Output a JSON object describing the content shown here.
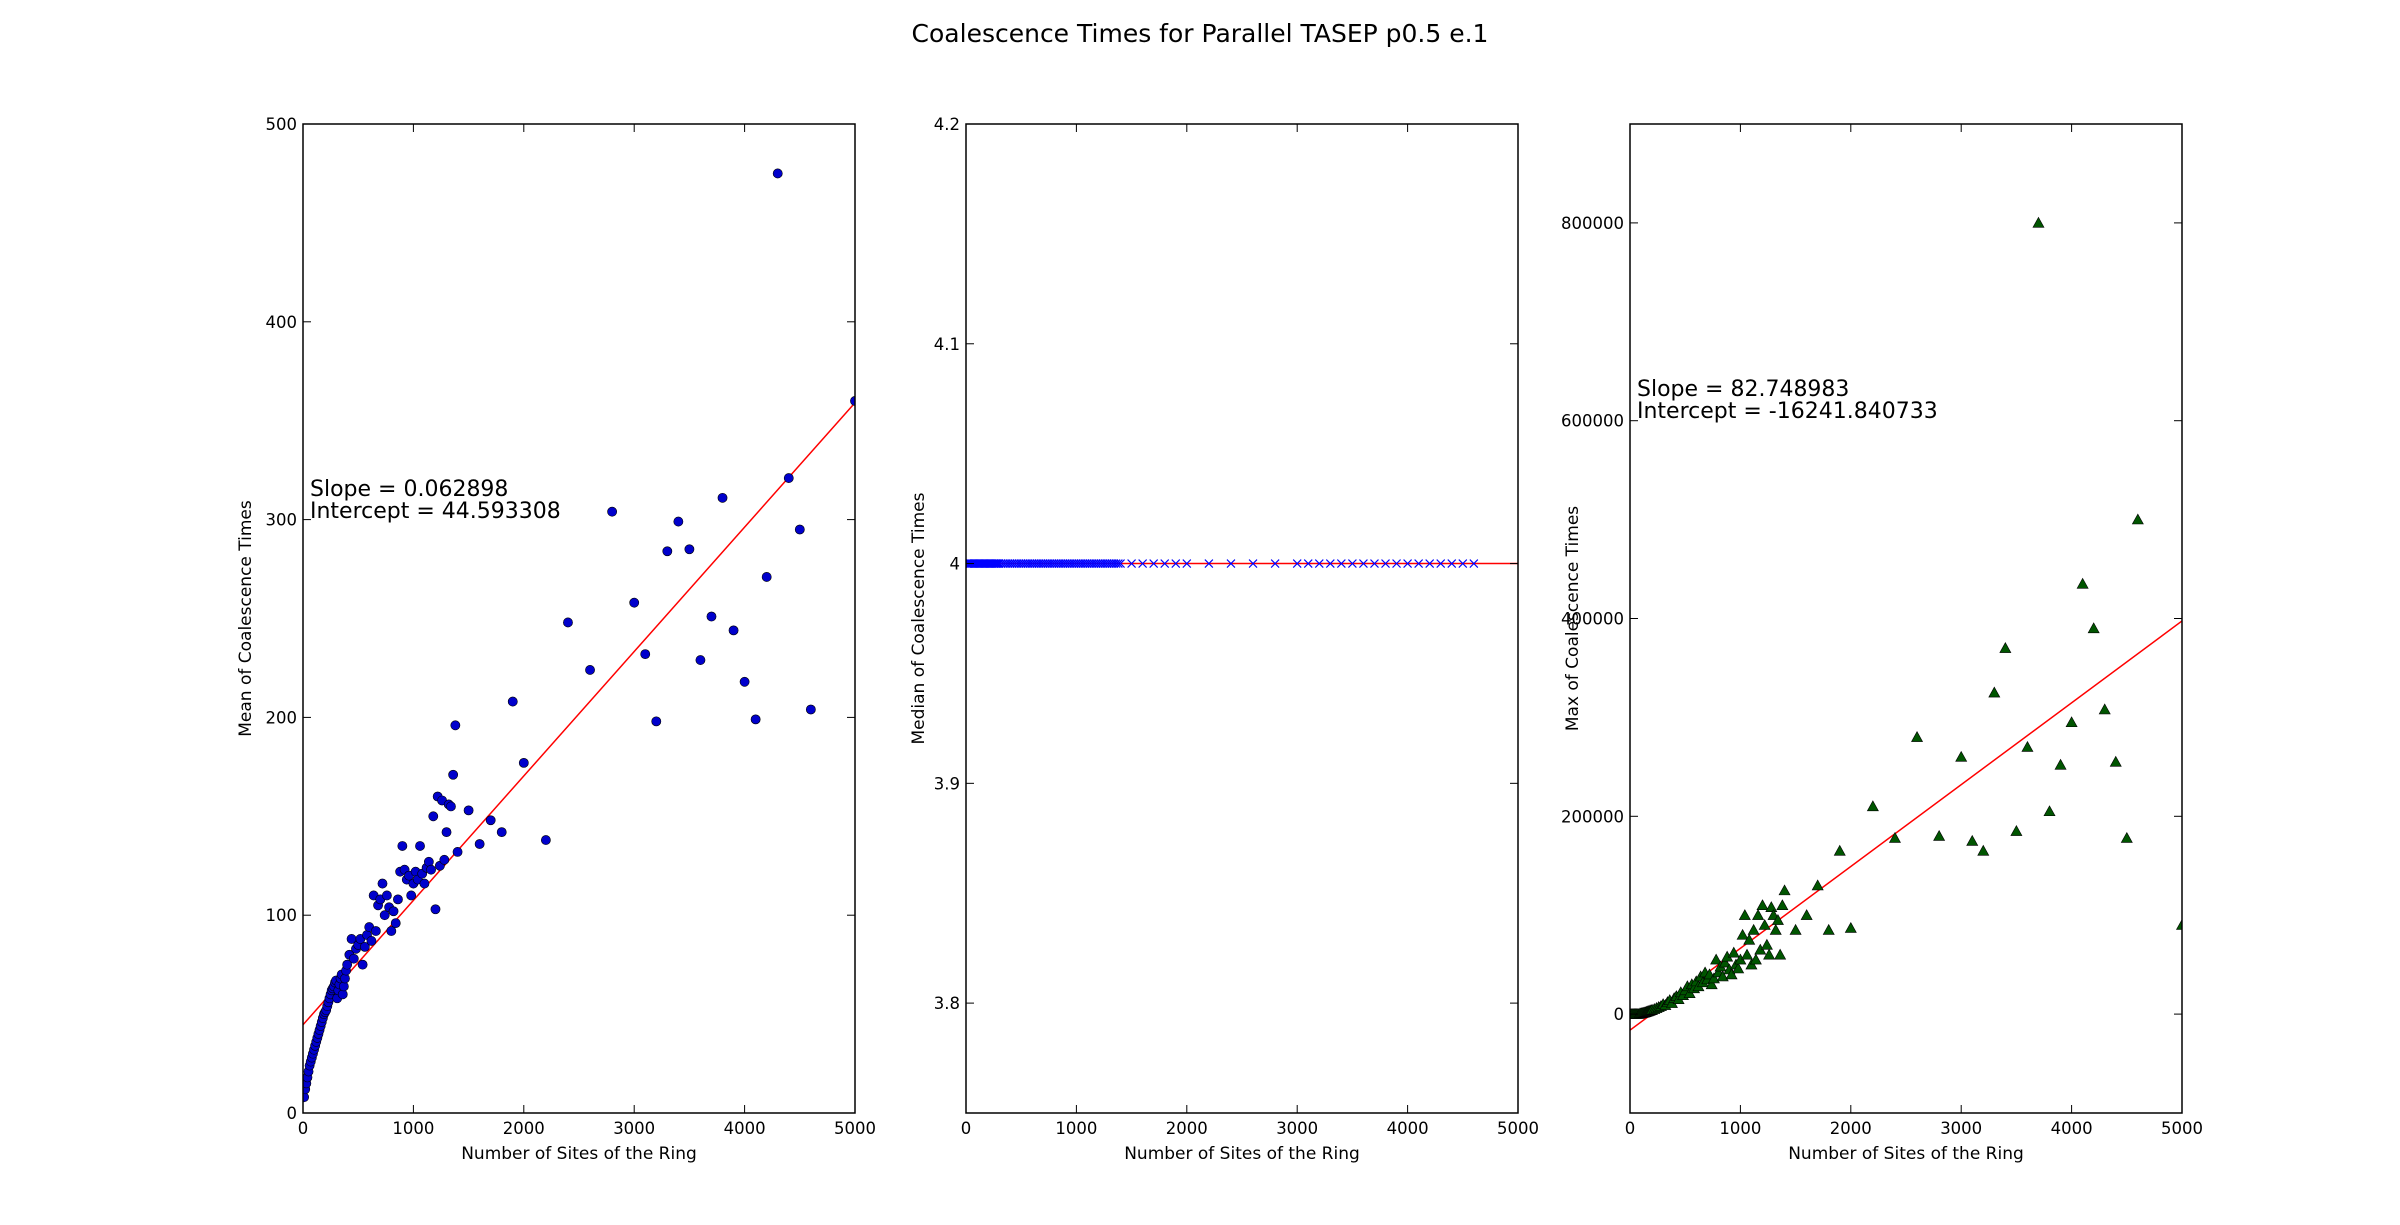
{
  "figure": {
    "title": "Coalescence Times for Parallel TASEP p0.5 e.1"
  },
  "chart_data": [
    {
      "type": "scatter",
      "xlabel": "Number of Sites of the Ring",
      "ylabel": "Mean of Coalescence Times",
      "xlim": [
        0,
        5000
      ],
      "ylim": [
        0,
        500
      ],
      "xticks": [
        0,
        1000,
        2000,
        3000,
        4000,
        5000
      ],
      "yticks": [
        0,
        100,
        200,
        300,
        400,
        500
      ],
      "grid": false,
      "marker": "circle",
      "marker_color": "#0000cc",
      "fit_color": "#ff0000",
      "annotation": [
        "Slope = 0.062898",
        "Intercept = 44.593308"
      ],
      "fit": {
        "slope": 0.062898,
        "intercept": 44.593308
      },
      "x": [
        10,
        20,
        30,
        40,
        50,
        60,
        70,
        80,
        90,
        100,
        110,
        120,
        130,
        140,
        150,
        160,
        170,
        180,
        190,
        200,
        210,
        220,
        230,
        240,
        250,
        260,
        270,
        280,
        290,
        300,
        310,
        320,
        330,
        340,
        350,
        360,
        370,
        380,
        390,
        400,
        420,
        440,
        460,
        480,
        500,
        520,
        540,
        560,
        580,
        600,
        620,
        640,
        660,
        680,
        700,
        720,
        740,
        760,
        780,
        800,
        820,
        840,
        860,
        880,
        900,
        920,
        940,
        960,
        980,
        1000,
        1020,
        1040,
        1060,
        1080,
        1100,
        1120,
        1140,
        1160,
        1180,
        1200,
        1220,
        1240,
        1260,
        1280,
        1300,
        1320,
        1340,
        1360,
        1380,
        1400,
        1500,
        1600,
        1700,
        1800,
        1900,
        2000,
        2200,
        2400,
        2600,
        2800,
        3000,
        3100,
        3200,
        3300,
        3400,
        3500,
        3600,
        3700,
        3800,
        3900,
        4000,
        4100,
        4200,
        4300,
        4400,
        4500,
        4600,
        5000
      ],
      "y": [
        8,
        12,
        15,
        18,
        21,
        24,
        26,
        28,
        30,
        32,
        34,
        36,
        38,
        40,
        42,
        44,
        46,
        48,
        50,
        51,
        52,
        54,
        56,
        58,
        60,
        62,
        63,
        64,
        66,
        67,
        58,
        62,
        65,
        68,
        70,
        60,
        64,
        68,
        72,
        75,
        80,
        88,
        78,
        83,
        85,
        88,
        75,
        84,
        90,
        94,
        87,
        110,
        92,
        105,
        108,
        116,
        100,
        110,
        104,
        92,
        102,
        96,
        108,
        122,
        135,
        123,
        118,
        120,
        110,
        116,
        122,
        118,
        135,
        121,
        116,
        124,
        127,
        123,
        150,
        103,
        160,
        125,
        158,
        128,
        142,
        156,
        155,
        171,
        196,
        132,
        153,
        136,
        148,
        142,
        208,
        177,
        138,
        248,
        224,
        304,
        258,
        232,
        198,
        284,
        299,
        285,
        229,
        251,
        311,
        244,
        218,
        199,
        271,
        475,
        321,
        295,
        204,
        360
      ]
    },
    {
      "type": "scatter",
      "xlabel": "Number of Sites of the Ring",
      "ylabel": "Median of Coalescence Times",
      "xlim": [
        0,
        5000
      ],
      "ylim": [
        3.75,
        4.2
      ],
      "xticks": [
        0,
        1000,
        2000,
        3000,
        4000,
        5000
      ],
      "yticks": [
        3.8,
        3.9,
        4.0,
        4.1,
        4.2
      ],
      "grid": false,
      "marker": "x",
      "marker_color": "#0000ff",
      "fit_color": "#ff0000",
      "fit": {
        "slope": 0,
        "intercept": 4.0
      },
      "x": [
        10,
        20,
        30,
        40,
        50,
        60,
        70,
        80,
        90,
        100,
        110,
        120,
        130,
        140,
        150,
        160,
        170,
        180,
        190,
        200,
        210,
        220,
        230,
        240,
        250,
        260,
        270,
        280,
        290,
        300,
        320,
        340,
        360,
        380,
        400,
        420,
        440,
        460,
        480,
        500,
        520,
        540,
        560,
        580,
        600,
        620,
        640,
        660,
        680,
        700,
        720,
        740,
        760,
        780,
        800,
        820,
        840,
        860,
        880,
        900,
        920,
        940,
        960,
        980,
        1000,
        1020,
        1040,
        1060,
        1080,
        1100,
        1120,
        1140,
        1160,
        1180,
        1200,
        1220,
        1240,
        1260,
        1280,
        1300,
        1320,
        1340,
        1360,
        1380,
        1400,
        1500,
        1600,
        1700,
        1800,
        1900,
        2000,
        2200,
        2400,
        2600,
        2800,
        3000,
        3100,
        3200,
        3300,
        3400,
        3500,
        3600,
        3700,
        3800,
        3900,
        4000,
        4100,
        4200,
        4300,
        4400,
        4500,
        4600
      ],
      "y": [
        4,
        4,
        4,
        4,
        4,
        4,
        4,
        4,
        4,
        4,
        4,
        4,
        4,
        4,
        4,
        4,
        4,
        4,
        4,
        4,
        4,
        4,
        4,
        4,
        4,
        4,
        4,
        4,
        4,
        4,
        4,
        4,
        4,
        4,
        4,
        4,
        4,
        4,
        4,
        4,
        4,
        4,
        4,
        4,
        4,
        4,
        4,
        4,
        4,
        4,
        4,
        4,
        4,
        4,
        4,
        4,
        4,
        4,
        4,
        4,
        4,
        4,
        4,
        4,
        4,
        4,
        4,
        4,
        4,
        4,
        4,
        4,
        4,
        4,
        4,
        4,
        4,
        4,
        4,
        4,
        4,
        4,
        4,
        4,
        4,
        4,
        4,
        4,
        4,
        4,
        4,
        4,
        4,
        4,
        4,
        4,
        4,
        4,
        4,
        4,
        4,
        4,
        4,
        4,
        4,
        4,
        4,
        4,
        4,
        4,
        4,
        4
      ]
    },
    {
      "type": "scatter",
      "xlabel": "Number of Sites of the Ring",
      "ylabel": "Max of Coalescence Times",
      "xlim": [
        0,
        5000
      ],
      "ylim": [
        -100000,
        900000
      ],
      "xticks": [
        0,
        1000,
        2000,
        3000,
        4000,
        5000
      ],
      "yticks": [
        0,
        200000,
        400000,
        600000,
        800000
      ],
      "grid": false,
      "marker": "triangle",
      "marker_color": "#005500",
      "fit_color": "#ff0000",
      "annotation": [
        "Slope = 82.748983",
        "Intercept = -16241.840733"
      ],
      "fit": {
        "slope": 82.748983,
        "intercept": -16241.840733
      },
      "x": [
        10,
        20,
        30,
        40,
        50,
        60,
        70,
        80,
        90,
        100,
        110,
        120,
        130,
        140,
        150,
        160,
        170,
        180,
        190,
        200,
        220,
        240,
        260,
        280,
        300,
        320,
        340,
        360,
        380,
        400,
        420,
        440,
        460,
        480,
        500,
        520,
        540,
        560,
        580,
        600,
        620,
        640,
        660,
        680,
        700,
        720,
        740,
        760,
        780,
        800,
        820,
        840,
        860,
        880,
        900,
        920,
        940,
        960,
        980,
        1000,
        1020,
        1040,
        1060,
        1080,
        1100,
        1120,
        1140,
        1160,
        1180,
        1200,
        1220,
        1240,
        1260,
        1280,
        1300,
        1320,
        1340,
        1360,
        1380,
        1400,
        1500,
        1600,
        1700,
        1800,
        1900,
        2000,
        2200,
        2400,
        2600,
        2800,
        3000,
        3100,
        3200,
        3300,
        3400,
        3500,
        3600,
        3700,
        3800,
        3900,
        4000,
        4100,
        4200,
        4300,
        4400,
        4500,
        4600,
        5000
      ],
      "y": [
        0,
        0,
        0,
        0,
        0,
        0,
        0,
        0,
        500,
        800,
        1000,
        1200,
        1500,
        1800,
        2200,
        2600,
        3000,
        3400,
        3800,
        4200,
        5000,
        6000,
        7000,
        8000,
        10000,
        9000,
        12000,
        14000,
        11000,
        16000,
        18000,
        15000,
        22000,
        19000,
        24000,
        28000,
        21000,
        30000,
        26000,
        33000,
        28000,
        38000,
        32000,
        42000,
        35000,
        40000,
        30000,
        36000,
        55000,
        42000,
        48000,
        38000,
        52000,
        58000,
        45000,
        40000,
        62000,
        50000,
        46000,
        55000,
        80000,
        100000,
        60000,
        75000,
        50000,
        85000,
        55000,
        100000,
        65000,
        110000,
        90000,
        70000,
        60000,
        108000,
        100000,
        85000,
        95000,
        60000,
        110000,
        125000,
        85000,
        100000,
        130000,
        85000,
        165000,
        87000,
        210000,
        178000,
        280000,
        180000,
        260000,
        175000,
        165000,
        325000,
        370000,
        185000,
        270000,
        800000,
        205000,
        252000,
        295000,
        435000,
        390000,
        308000,
        255000,
        178000,
        500000,
        90000
      ]
    }
  ]
}
